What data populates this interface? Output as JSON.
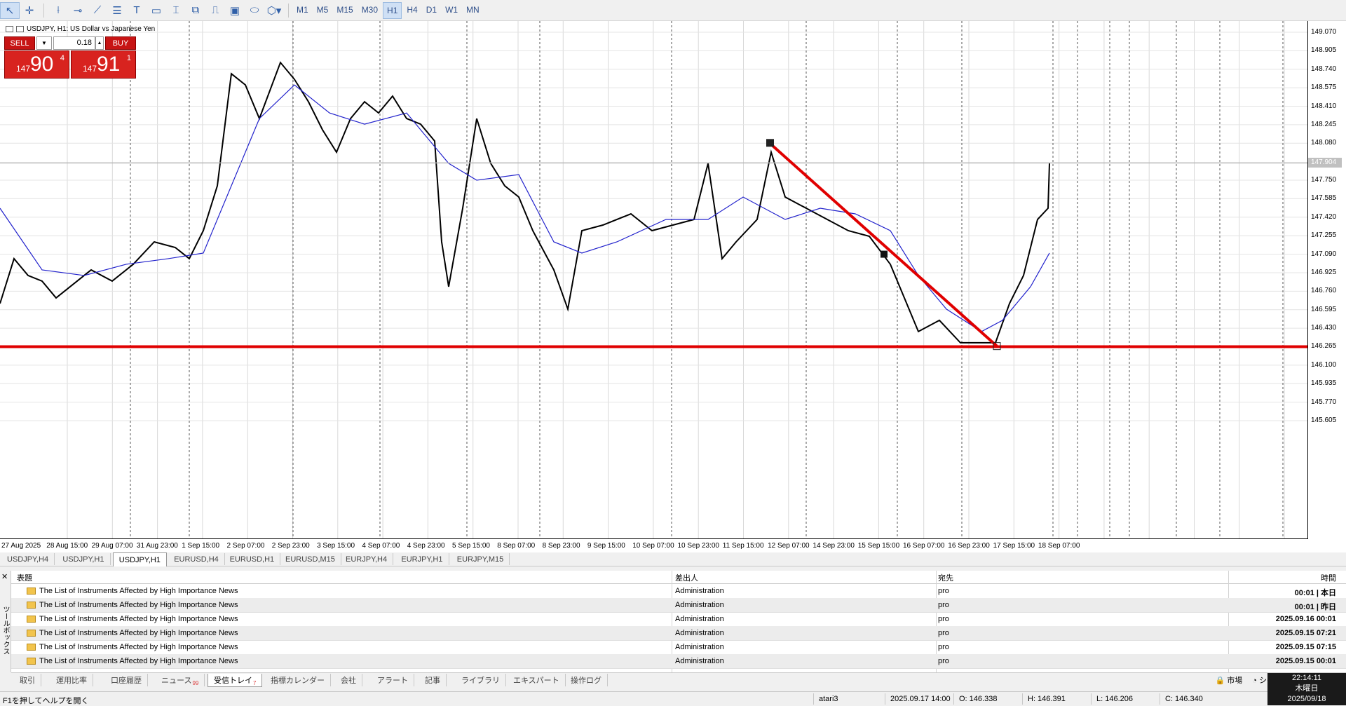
{
  "toolbar": {
    "timeframes": [
      "M1",
      "M5",
      "M15",
      "M30",
      "H1",
      "H4",
      "D1",
      "W1",
      "MN"
    ],
    "active_timeframe": "H1"
  },
  "chart": {
    "title": "USDJPY, H1:  US Dollar vs Japanese Yen",
    "trade": {
      "sell_label": "SELL",
      "buy_label": "BUY",
      "lot": "0.18",
      "sell_small": "147",
      "sell_big": "90",
      "sell_sup": "4",
      "buy_small": "147",
      "buy_big": "91",
      "buy_sup": "1"
    },
    "current_price": "147.904",
    "price_scale": [
      "149.070",
      "148.905",
      "148.740",
      "148.575",
      "148.410",
      "148.245",
      "148.080",
      "147.750",
      "147.585",
      "147.420",
      "147.255",
      "147.090",
      "146.925",
      "146.760",
      "146.595",
      "146.430",
      "146.265",
      "146.100",
      "145.935",
      "145.770",
      "145.605"
    ],
    "time_scale": [
      "27 Aug 2025",
      "28 Aug 15:00",
      "29 Aug 07:00",
      "31 Aug 23:00",
      "1 Sep 15:00",
      "2 Sep 07:00",
      "2 Sep 23:00",
      "3 Sep 15:00",
      "4 Sep 07:00",
      "4 Sep 23:00",
      "5 Sep 15:00",
      "8 Sep 07:00",
      "8 Sep 23:00",
      "9 Sep 15:00",
      "10 Sep 07:00",
      "10 Sep 23:00",
      "11 Sep 15:00",
      "12 Sep 07:00",
      "14 Sep 23:00",
      "15 Sep 15:00",
      "16 Sep 07:00",
      "16 Sep 23:00",
      "17 Sep 15:00",
      "18 Sep 07:00"
    ],
    "support_level": 146.265
  },
  "chart_tabs": [
    "USDJPY,H4",
    "USDJPY,H1",
    "USDJPY,H1",
    "EURUSD,H4",
    "EURUSD,H1",
    "EURUSD,M15",
    "EURJPY,H4",
    "EURJPY,H1",
    "EURJPY,M15"
  ],
  "active_chart_tab": 2,
  "toolbox": {
    "side_label": "ツールボックス",
    "columns": {
      "subject": "表題",
      "from": "差出人",
      "to": "宛先",
      "time": "時間"
    },
    "rows": [
      {
        "subject": "The List of Instruments Affected by High Importance News",
        "from": "Administration",
        "to": "pro",
        "time": "00:01 | 本日"
      },
      {
        "subject": "The List of Instruments Affected by High Importance News",
        "from": "Administration",
        "to": "pro",
        "time": "00:01 | 昨日"
      },
      {
        "subject": "The List of Instruments Affected by High Importance News",
        "from": "Administration",
        "to": "pro",
        "time": "2025.09.16 00:01"
      },
      {
        "subject": "The List of Instruments Affected by High Importance News",
        "from": "Administration",
        "to": "pro",
        "time": "2025.09.15 07:21"
      },
      {
        "subject": "The List of Instruments Affected by High Importance News",
        "from": "Administration",
        "to": "pro",
        "time": "2025.09.15 07:15"
      },
      {
        "subject": "The List of Instruments Affected by High Importance News",
        "from": "Administration",
        "to": "pro",
        "time": "2025.09.15 00:01"
      }
    ],
    "tabs": [
      "取引",
      "運用比率",
      "口座履歴",
      "ニュース",
      "受信トレイ",
      "指標カレンダー",
      "会社",
      "アラート",
      "記事",
      "ライブラリ",
      "エキスパート",
      "操作ログ"
    ],
    "news_badge": "99",
    "inbox_badge": "7",
    "active_tab": 4,
    "market_label": "市場",
    "signal_label": "シグナル"
  },
  "clock": {
    "time": "22:14:11",
    "day": "木曜日",
    "date": "2025/09/18"
  },
  "status": {
    "help": "F1を押してヘルプを開く",
    "profile": "atari3",
    "datetime": "2025.09.17 14:00",
    "open": "O: 146.338",
    "high": "H: 146.391",
    "low": "L: 146.206",
    "close": "C: 146.340"
  }
}
